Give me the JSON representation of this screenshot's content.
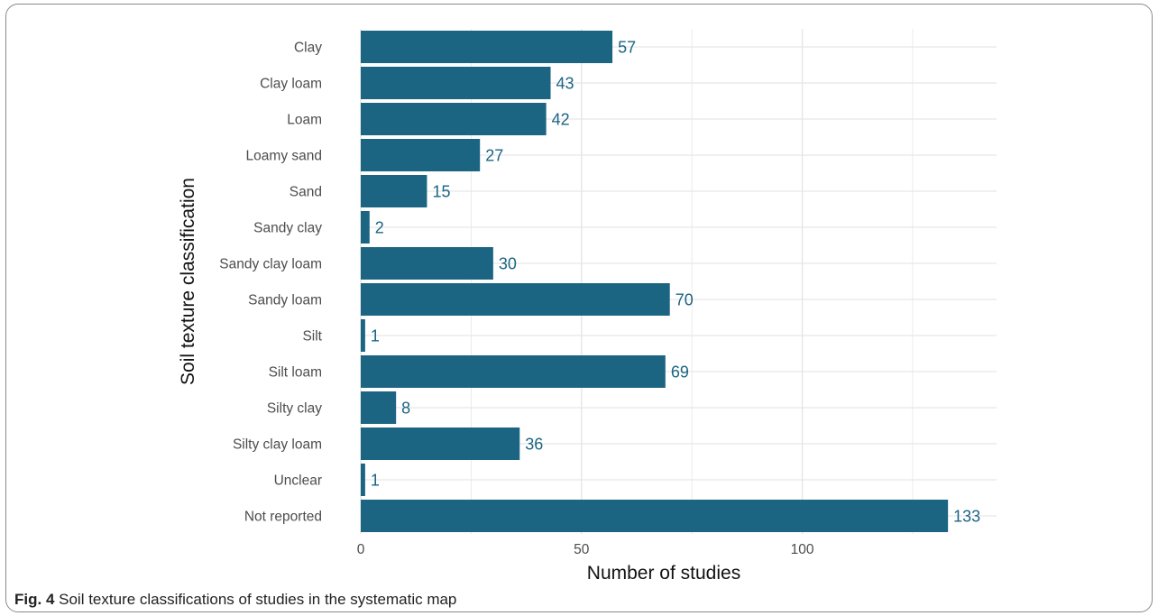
{
  "caption": {
    "label": "Fig. 4",
    "text": "Soil texture classifications of studies in the systematic map"
  },
  "colors": {
    "bar": "#1b6583",
    "label": "#1b6583",
    "grid": "#e6e6e6",
    "axis_text": "#4d4d4d"
  },
  "chart_data": {
    "type": "bar",
    "orientation": "horizontal",
    "categories": [
      "Clay",
      "Clay loam",
      "Loam",
      "Loamy sand",
      "Sand",
      "Sandy clay",
      "Sandy clay loam",
      "Sandy loam",
      "Silt",
      "Silt loam",
      "Silty clay",
      "Silty clay loam",
      "Unclear",
      "Not reported"
    ],
    "values": [
      57,
      43,
      42,
      27,
      15,
      2,
      30,
      70,
      1,
      69,
      8,
      36,
      1,
      133
    ],
    "xlabel": "Number of studies",
    "ylabel": "Soil texture classification",
    "xlim": [
      0,
      144
    ],
    "xticks": [
      0,
      50,
      100
    ],
    "data_labels": true,
    "grid": true,
    "legend": "none"
  }
}
